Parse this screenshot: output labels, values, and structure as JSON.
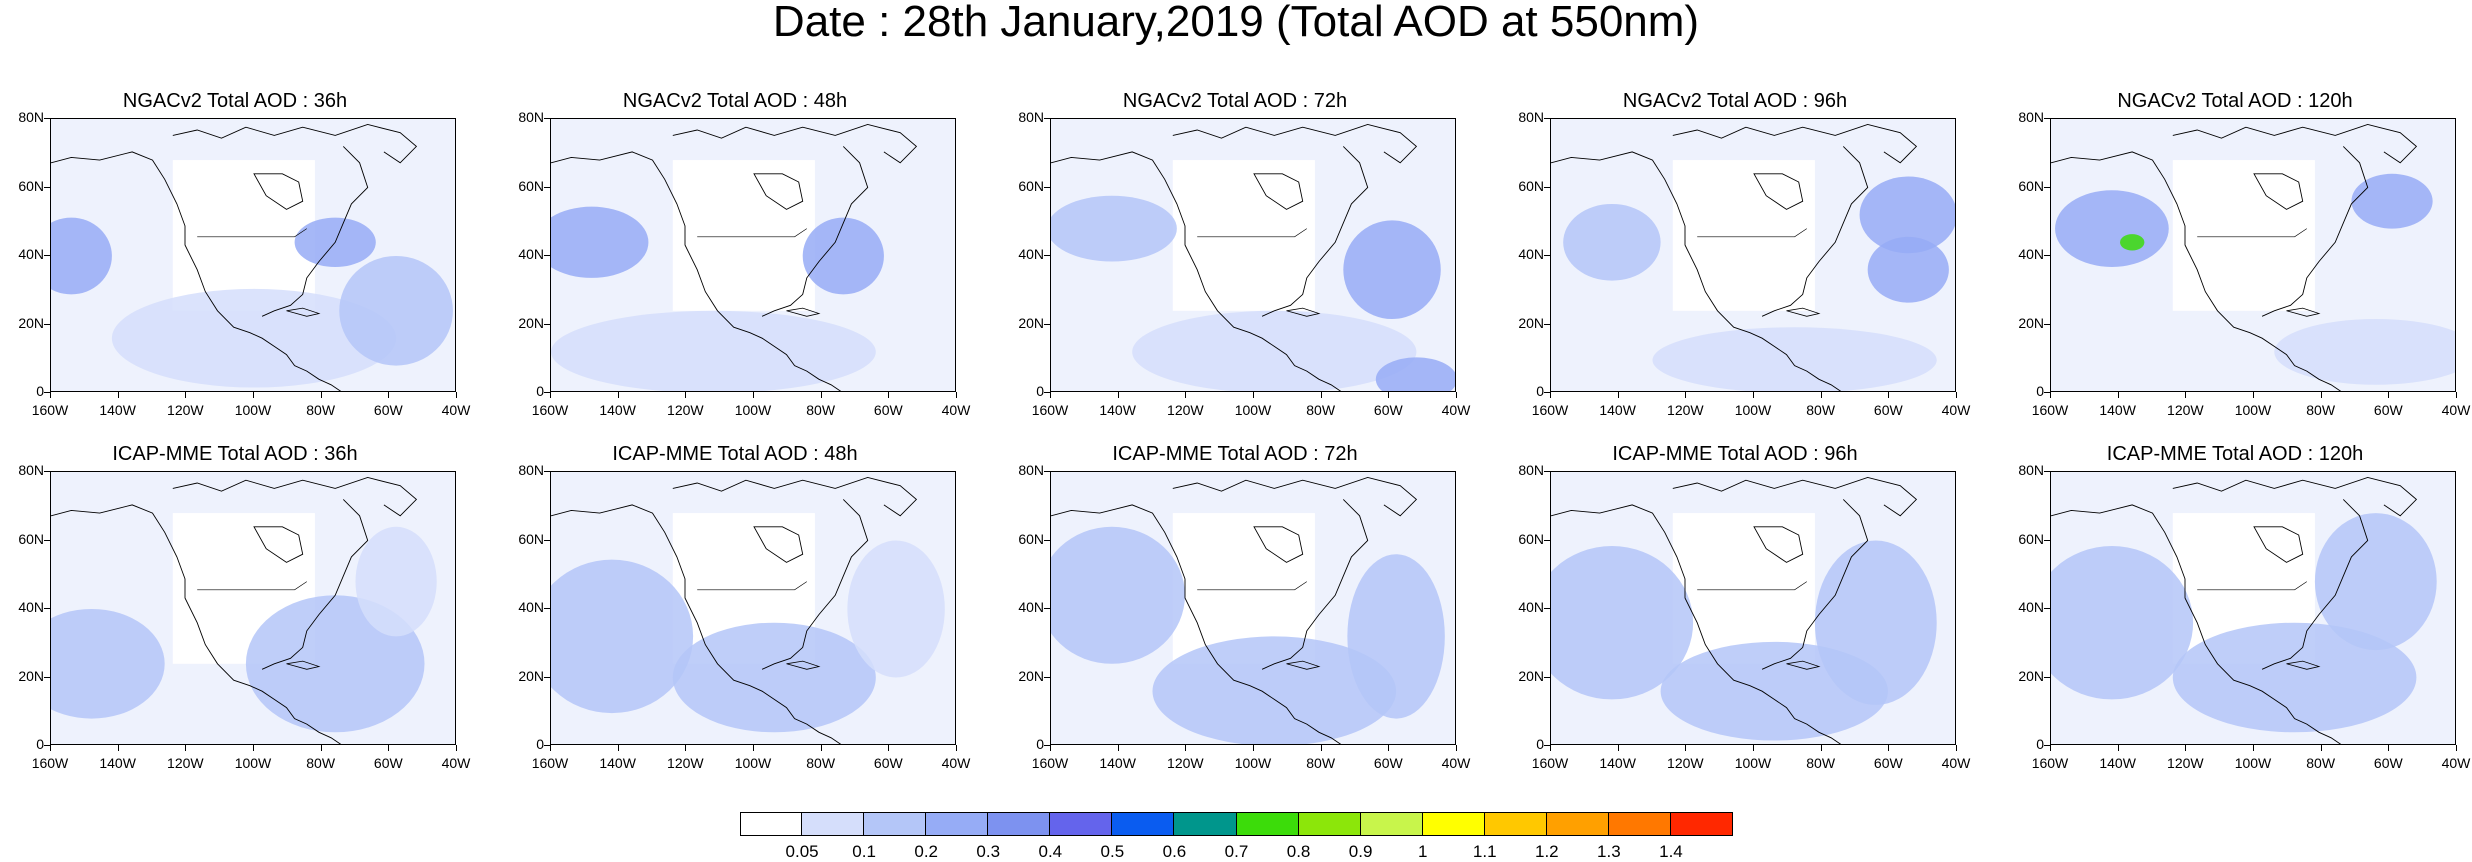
{
  "title": "Date : 28th January,2019 (Total AOD at 550nm)",
  "lat_labels": [
    "80N",
    "60N",
    "40N",
    "20N",
    "0"
  ],
  "lon_labels": [
    "160W",
    "140W",
    "120W",
    "100W",
    "80W",
    "60W",
    "40W"
  ],
  "panels": [
    {
      "title": "NGACv2 Total AOD : 36h",
      "model": "NGACv2",
      "lead": "36h"
    },
    {
      "title": "NGACv2 Total AOD : 48h",
      "model": "NGACv2",
      "lead": "48h"
    },
    {
      "title": "NGACv2 Total AOD : 72h",
      "model": "NGACv2",
      "lead": "72h"
    },
    {
      "title": "NGACv2 Total AOD : 96h",
      "model": "NGACv2",
      "lead": "96h"
    },
    {
      "title": "NGACv2 Total AOD : 120h",
      "model": "NGACv2",
      "lead": "120h"
    },
    {
      "title": "ICAP-MME Total AOD : 36h",
      "model": "ICAP-MME",
      "lead": "36h"
    },
    {
      "title": "ICAP-MME Total AOD : 48h",
      "model": "ICAP-MME",
      "lead": "48h"
    },
    {
      "title": "ICAP-MME Total AOD : 72h",
      "model": "ICAP-MME",
      "lead": "72h"
    },
    {
      "title": "ICAP-MME Total AOD : 96h",
      "model": "ICAP-MME",
      "lead": "96h"
    },
    {
      "title": "ICAP-MME Total AOD : 120h",
      "model": "ICAP-MME",
      "lead": "120h"
    }
  ],
  "colorbar": {
    "labels": [
      "0.05",
      "0.1",
      "0.2",
      "0.3",
      "0.4",
      "0.5",
      "0.6",
      "0.7",
      "0.8",
      "0.9",
      "1",
      "1.1",
      "1.2",
      "1.3",
      "1.4"
    ],
    "colors": [
      "#ffffff",
      "#d5defb",
      "#b4c6f8",
      "#96acf6",
      "#7d92f0",
      "#6464ec",
      "#0a5cf0",
      "#00968c",
      "#3cdc0a",
      "#8ce60a",
      "#c8f54b",
      "#ffff00",
      "#ffc800",
      "#ffa000",
      "#ff7800",
      "#ff2800"
    ]
  }
}
